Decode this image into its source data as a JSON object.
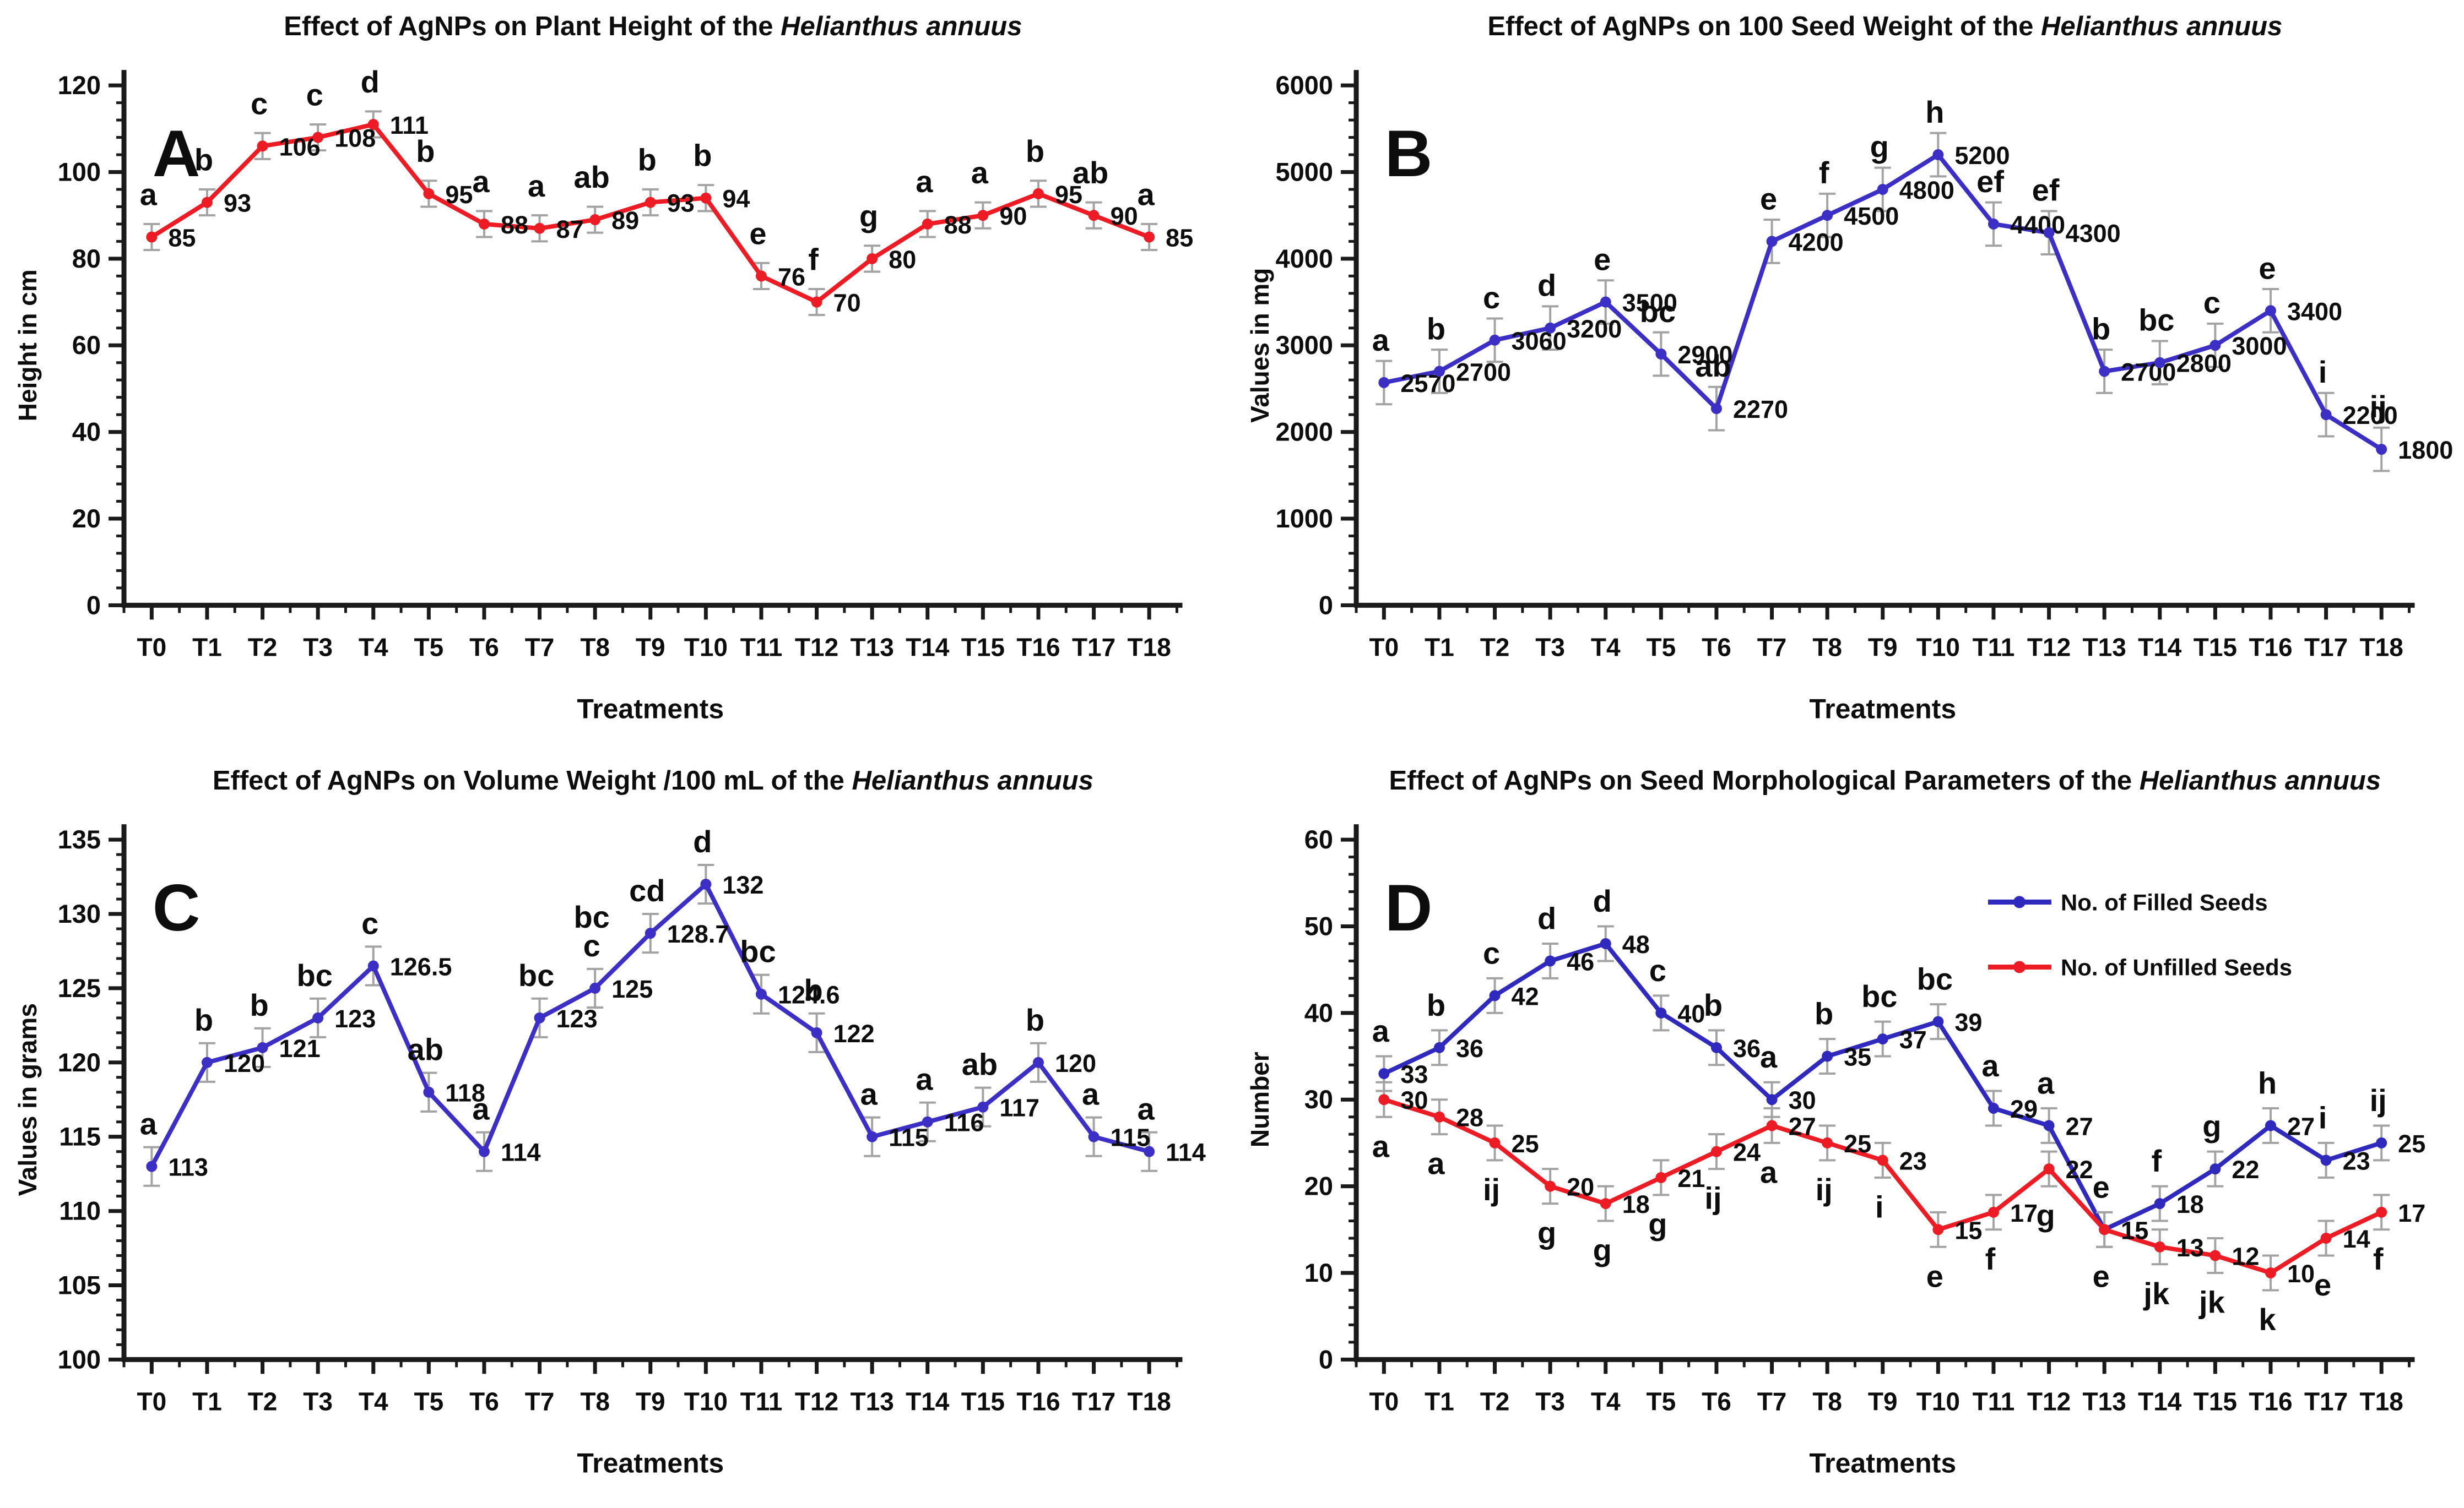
{
  "figure": {
    "background": "#ffffff",
    "text_color": "#111111",
    "error_bar_color": "#a3a3a3"
  },
  "chart_data": [
    {
      "id": "A",
      "type": "line",
      "title_prefix": "Effect of AgNPs on Plant Height of the ",
      "title_italic": "Helianthus annuus",
      "xlabel": "Treatments",
      "ylabel": "Height in cm",
      "ylim": [
        0,
        120
      ],
      "ytick_step": 20,
      "error_bar": 3,
      "grid": false,
      "categories": [
        "T0",
        "T1",
        "T2",
        "T3",
        "T4",
        "T5",
        "T6",
        "T7",
        "T8",
        "T9",
        "T10",
        "T11",
        "T12",
        "T13",
        "T14",
        "T15",
        "T16",
        "T17",
        "T18"
      ],
      "series": [
        {
          "name": "Plant Height",
          "color": "#ed1c24",
          "letter_pos": "above",
          "values": [
            85,
            93,
            106,
            108,
            111,
            95,
            88,
            87,
            89,
            93,
            94,
            76,
            70,
            80,
            88,
            90,
            95,
            90,
            85
          ],
          "letters": [
            "a",
            "b",
            "c",
            "c",
            "d",
            "b",
            "a",
            "a",
            "ab",
            "b",
            "b",
            "e",
            "f",
            "g",
            "a",
            "a",
            "b",
            "ab",
            "a"
          ]
        }
      ],
      "show_legend": false
    },
    {
      "id": "B",
      "type": "line",
      "title_prefix": "Effect of AgNPs on 100 Seed Weight of the ",
      "title_italic": "Helianthus annuus",
      "xlabel": "Treatments",
      "ylabel": "Values in mg",
      "ylim": [
        0,
        6000
      ],
      "ytick_step": 1000,
      "error_bar": 250,
      "grid": false,
      "categories": [
        "T0",
        "T1",
        "T2",
        "T3",
        "T4",
        "T5",
        "T6",
        "T7",
        "T8",
        "T9",
        "T10",
        "T11",
        "T12",
        "T13",
        "T14",
        "T15",
        "T16",
        "T17",
        "T18"
      ],
      "series": [
        {
          "name": "100 Seed Weight",
          "color": "#3b2fc6",
          "letter_pos": "above",
          "values": [
            2570,
            2700,
            3060,
            3200,
            3500,
            2900,
            2270,
            4200,
            4500,
            4800,
            5200,
            4400,
            4300,
            2700,
            2800,
            3000,
            3400,
            2200,
            1800
          ],
          "letters": [
            "a",
            "b",
            "c",
            "d",
            "e",
            "bc",
            "ab",
            "e",
            "f",
            "g",
            "h",
            "ef",
            "ef",
            "b",
            "bc",
            "c",
            "e",
            "i",
            "ij"
          ]
        }
      ],
      "show_legend": false
    },
    {
      "id": "C",
      "type": "line",
      "title_prefix": "Effect of AgNPs on Volume Weight /100 mL of the ",
      "title_italic": "Helianthus annuus",
      "xlabel": "Treatments",
      "ylabel": "Values in grams",
      "ylim": [
        100,
        135
      ],
      "ytick_step": 5,
      "error_bar": 1.3,
      "grid": false,
      "categories": [
        "T0",
        "T1",
        "T2",
        "T3",
        "T4",
        "T5",
        "T6",
        "T7",
        "T8",
        "T9",
        "T10",
        "T11",
        "T12",
        "T13",
        "T14",
        "T15",
        "T16",
        "T17",
        "T18"
      ],
      "series": [
        {
          "name": "Volume Weight /100 mL",
          "color": "#3b2fc6",
          "letter_pos": "above",
          "values": [
            113,
            120,
            121,
            123,
            126.5,
            118,
            114,
            123,
            125,
            128.7,
            132,
            124.6,
            122,
            115,
            116,
            117,
            120,
            115,
            114
          ],
          "letters": [
            "a",
            "b",
            "b",
            "bc",
            "c",
            "ab",
            "a",
            "bc",
            "bc\nc",
            "cd",
            "d",
            "bc",
            "b",
            "a",
            "a",
            "ab",
            "b",
            "a",
            "a"
          ]
        }
      ],
      "show_legend": false
    },
    {
      "id": "D",
      "type": "line",
      "title_prefix": "Effect of AgNPs on Seed Morphological Parameters of the ",
      "title_italic": "Helianthus annuus",
      "xlabel": "Treatments",
      "ylabel": "Number",
      "ylim": [
        0,
        60
      ],
      "ytick_step": 10,
      "error_bar": 2,
      "grid": false,
      "categories": [
        "T0",
        "T1",
        "T2",
        "T3",
        "T4",
        "T5",
        "T6",
        "T7",
        "T8",
        "T9",
        "T10",
        "T11",
        "T12",
        "T13",
        "T14",
        "T15",
        "T16",
        "T17",
        "T18"
      ],
      "series": [
        {
          "name": "No. of Filled Seeds",
          "color": "#2f2abd",
          "letter_pos": "above",
          "values": [
            33,
            36,
            42,
            46,
            48,
            40,
            36,
            30,
            35,
            37,
            39,
            29,
            27,
            15,
            18,
            22,
            27,
            23,
            25
          ],
          "letters": [
            "a",
            "b",
            "c",
            "d",
            "d",
            "c",
            "b",
            "a",
            "b",
            "bc",
            "bc",
            "a",
            "a",
            "e",
            "f",
            "g",
            "h",
            "i",
            "ij"
          ]
        },
        {
          "name": "No. of Unfilled Seeds",
          "color": "#ed1c24",
          "letter_pos": "below",
          "values": [
            30,
            28,
            25,
            20,
            18,
            21,
            24,
            27,
            25,
            23,
            15,
            17,
            22,
            15,
            13,
            12,
            10,
            14,
            17
          ],
          "letters": [
            "a",
            "a",
            "ij",
            "g",
            "g",
            "g",
            "ij",
            "a",
            "ij",
            "i",
            "e",
            "f",
            "g",
            "e",
            "jk",
            "jk",
            "k",
            "e",
            "f"
          ]
        }
      ],
      "show_legend": true
    }
  ]
}
